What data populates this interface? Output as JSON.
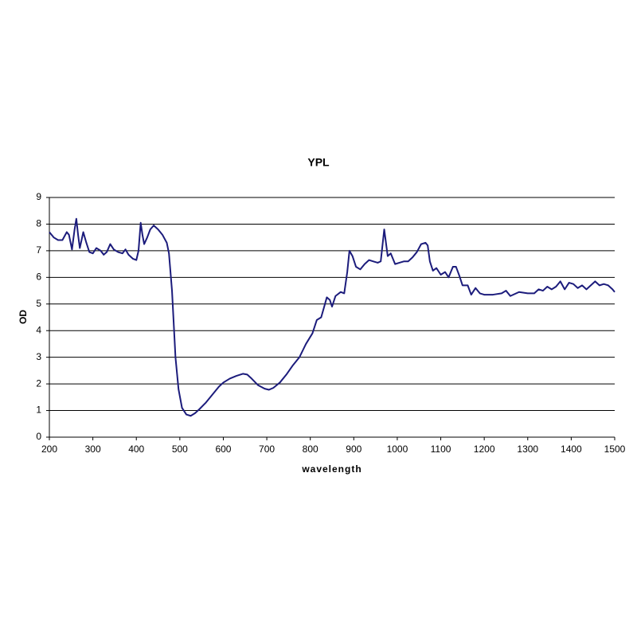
{
  "chart_data": {
    "type": "line",
    "title": "YPL",
    "x_label": "wavelength",
    "y_label": "OD",
    "x": [
      200,
      210,
      220,
      230,
      240,
      245,
      252,
      258,
      262,
      266,
      270,
      278,
      285,
      292,
      300,
      308,
      318,
      325,
      332,
      340,
      348,
      358,
      368,
      375,
      382,
      392,
      400,
      405,
      410,
      414,
      418,
      425,
      432,
      440,
      450,
      460,
      470,
      475,
      482,
      490,
      497,
      505,
      515,
      525,
      535,
      545,
      560,
      575,
      590,
      600,
      615,
      630,
      645,
      655,
      665,
      680,
      695,
      705,
      715,
      730,
      745,
      760,
      775,
      790,
      805,
      815,
      825,
      832,
      838,
      845,
      850,
      858,
      870,
      878,
      885,
      890,
      897,
      905,
      915,
      925,
      935,
      945,
      955,
      962,
      970,
      978,
      985,
      995,
      1005,
      1015,
      1025,
      1035,
      1045,
      1055,
      1065,
      1070,
      1075,
      1082,
      1090,
      1100,
      1110,
      1118,
      1128,
      1135,
      1143,
      1150,
      1162,
      1170,
      1180,
      1190,
      1200,
      1220,
      1240,
      1250,
      1260,
      1280,
      1300,
      1315,
      1325,
      1335,
      1345,
      1355,
      1365,
      1375,
      1385,
      1395,
      1405,
      1415,
      1425,
      1435,
      1445,
      1455,
      1465,
      1475,
      1485,
      1495,
      1500
    ],
    "values": [
      7.7,
      7.5,
      7.4,
      7.4,
      7.7,
      7.6,
      7.05,
      7.8,
      8.2,
      7.6,
      7.1,
      7.7,
      7.3,
      6.95,
      6.9,
      7.1,
      7.0,
      6.85,
      6.95,
      7.25,
      7.05,
      6.95,
      6.9,
      7.05,
      6.85,
      6.7,
      6.65,
      7.0,
      8.05,
      7.6,
      7.25,
      7.5,
      7.8,
      7.95,
      7.8,
      7.6,
      7.3,
      6.9,
      5.5,
      3.0,
      1.8,
      1.1,
      0.85,
      0.8,
      0.9,
      1.05,
      1.3,
      1.6,
      1.9,
      2.05,
      2.2,
      2.3,
      2.38,
      2.35,
      2.2,
      1.95,
      1.82,
      1.78,
      1.85,
      2.05,
      2.35,
      2.7,
      3.0,
      3.5,
      3.9,
      4.4,
      4.5,
      4.9,
      5.25,
      5.15,
      4.9,
      5.3,
      5.45,
      5.4,
      6.2,
      7.0,
      6.8,
      6.4,
      6.3,
      6.5,
      6.65,
      6.6,
      6.55,
      6.6,
      7.8,
      6.8,
      6.9,
      6.5,
      6.55,
      6.6,
      6.6,
      6.75,
      6.95,
      7.25,
      7.3,
      7.2,
      6.6,
      6.25,
      6.35,
      6.1,
      6.2,
      6.0,
      6.4,
      6.4,
      6.05,
      5.7,
      5.7,
      5.35,
      5.6,
      5.4,
      5.35,
      5.35,
      5.4,
      5.5,
      5.3,
      5.45,
      5.4,
      5.4,
      5.55,
      5.5,
      5.65,
      5.55,
      5.65,
      5.85,
      5.55,
      5.8,
      5.75,
      5.6,
      5.7,
      5.55,
      5.7,
      5.85,
      5.7,
      5.75,
      5.7,
      5.55,
      5.45
    ],
    "color": "#1c1c7c",
    "xlim": [
      200,
      1500
    ],
    "xticks": [
      200,
      300,
      400,
      500,
      600,
      700,
      800,
      900,
      1000,
      1100,
      1200,
      1300,
      1400,
      1500
    ],
    "ylim": [
      0,
      9
    ],
    "yticks": [
      0,
      1,
      2,
      3,
      4,
      5,
      6,
      7,
      8,
      9
    ],
    "grid": true
  }
}
